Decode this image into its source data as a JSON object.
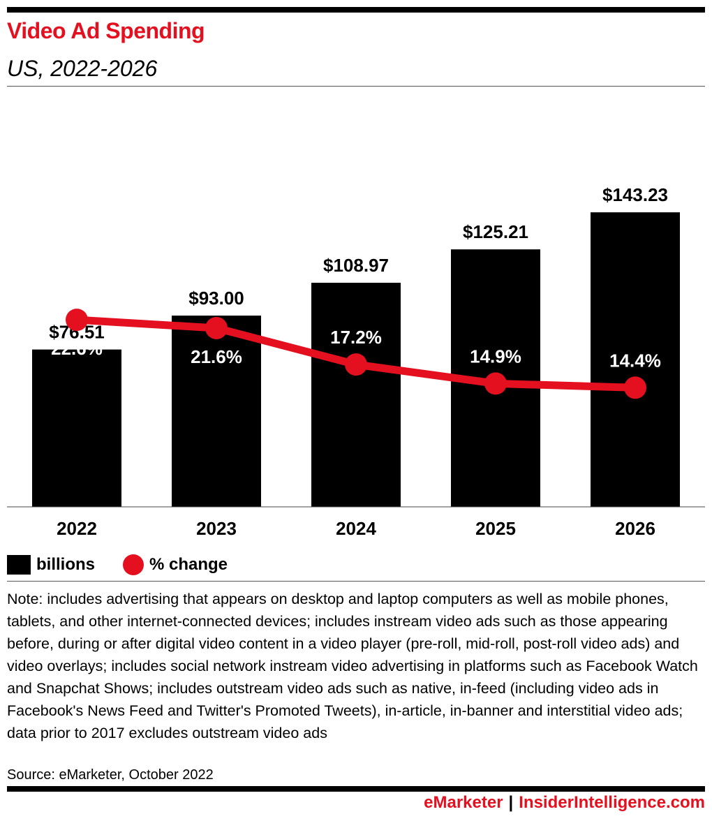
{
  "header": {
    "title": "Video Ad Spending",
    "subtitle": "US, 2022-2026"
  },
  "legend": {
    "bars_label": "billions",
    "line_label": "% change"
  },
  "note": "Note: includes advertising that appears on desktop and laptop computers as well as mobile phones, tablets, and other internet-connected devices; includes instream video ads such as those appearing before, during or after digital video content in a video player (pre-roll, mid-roll, post-roll video ads) and video overlays; includes social network instream video advertising in platforms such as Facebook Watch and Snapchat Shows; includes outstream video ads such as native, in-feed (including video ads in Facebook's News Feed and Twitter's Promoted Tweets), in-article, in-banner and interstitial video ads; data prior to 2017 excludes outstream video ads",
  "source": "Source: eMarketer, October 2022",
  "footer": {
    "brand1": "eMarketer",
    "separator": "|",
    "brand2": "InsiderIntelligence.com"
  },
  "colors": {
    "accent": "#e4101f",
    "bar": "#000000"
  },
  "chart_data": {
    "type": "bar",
    "categories": [
      "2022",
      "2023",
      "2024",
      "2025",
      "2026"
    ],
    "series": [
      {
        "name": "billions",
        "type": "bar",
        "values": [
          76.51,
          93.0,
          108.97,
          125.21,
          143.23
        ],
        "labels": [
          "$76.51",
          "$93.00",
          "$108.97",
          "$125.21",
          "$143.23"
        ]
      },
      {
        "name": "% change",
        "type": "line",
        "values": [
          22.6,
          21.6,
          17.2,
          14.9,
          14.4
        ],
        "labels": [
          "22.6%",
          "21.6%",
          "17.2%",
          "14.9%",
          "14.4%"
        ]
      }
    ],
    "ylim_bars": [
      0,
      165
    ],
    "ylim_line": [
      0,
      41
    ],
    "grid": false,
    "legend_position": "bottom-left"
  }
}
